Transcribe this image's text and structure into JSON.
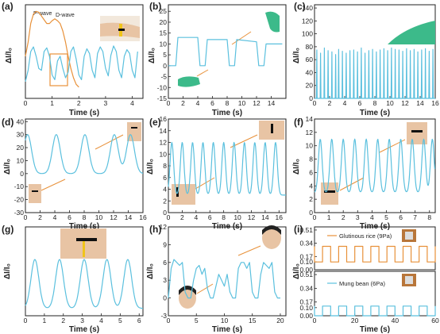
{
  "figure": {
    "panels": [
      {
        "letter": "(a)",
        "xlabel": "Time (s)",
        "ylabel": "ΔI/I₀",
        "xticks": [
          "0",
          "1",
          "2",
          "3",
          "4"
        ],
        "annotations": [
          "P-wave",
          "D-wave"
        ],
        "photo": "wrist-pulse-photo"
      },
      {
        "letter": "(b)",
        "xlabel": "Time (s)",
        "ylabel": "ΔI/I₀",
        "yticks": [
          "-15",
          "-10",
          "-5",
          "0",
          "5",
          "10",
          "15",
          "20",
          "25"
        ],
        "xticks": [
          "0",
          "2",
          "4",
          "6",
          "8",
          "10",
          "12",
          "14"
        ],
        "photo": "finger-bend-photo"
      },
      {
        "letter": "(c)",
        "xlabel": "Time (s)",
        "ylabel": "ΔI/I₀",
        "yticks": [
          "0",
          "20",
          "40",
          "60",
          "80",
          "100",
          "120",
          "140"
        ],
        "xticks": [
          "0",
          "2",
          "4",
          "6",
          "8",
          "10",
          "12",
          "14",
          "16"
        ],
        "photo": "finger-tap-photo"
      },
      {
        "letter": "(d)",
        "xlabel": "Time (s)",
        "ylabel": "ΔI/I₀",
        "yticks": [
          "-30",
          "-20",
          "-10",
          "0",
          "10",
          "20",
          "30",
          "40"
        ],
        "xticks": [
          "0",
          "2",
          "4",
          "6",
          "8",
          "10",
          "12",
          "14",
          "16"
        ],
        "photo": "wrist-bend-photo"
      },
      {
        "letter": "(e)",
        "xlabel": "Time (s)",
        "ylabel": "ΔI/I₀",
        "yticks": [
          "0",
          "2",
          "4",
          "6",
          "8",
          "10",
          "12",
          "14",
          "16"
        ],
        "xticks": [
          "0",
          "2",
          "4",
          "6",
          "8",
          "10",
          "12",
          "14",
          "16"
        ],
        "photo": "elbow-bend-photo"
      },
      {
        "letter": "(f)",
        "xlabel": "Time (s)",
        "ylabel": "ΔI/I₀",
        "yticks": [
          "0",
          "2",
          "4",
          "6",
          "8",
          "10",
          "12",
          "14"
        ],
        "xticks": [
          "0",
          "1",
          "2",
          "3",
          "4",
          "5",
          "6",
          "7",
          "8"
        ],
        "photo": "knee-bend-photo"
      },
      {
        "letter": "(g)",
        "xlabel": "Time (s)",
        "ylabel": "ΔI/I₀",
        "xticks": [
          "0",
          "1",
          "2",
          "3",
          "4",
          "5",
          "6"
        ],
        "photo": "throat-photo"
      },
      {
        "letter": "(h)",
        "xlabel": "Time (s)",
        "ylabel": "ΔI/I₀",
        "yticks": [
          "-3",
          "0",
          "3",
          "6",
          "9",
          "12"
        ],
        "xticks": [
          "0",
          "5",
          "10",
          "15",
          "20"
        ],
        "photo": "face-photo"
      },
      {
        "letter": "(i)",
        "xlabel": "Time (s)",
        "ylabel": "ΔI/I₀",
        "yticks_top": [
          "0.00",
          "0.10",
          "0.17",
          "0.34",
          "0.51"
        ],
        "yticks_bottom": [
          "0.00",
          "0.10",
          "0.17",
          "0.34",
          "0.51"
        ],
        "xticks": [
          "0",
          "20",
          "40",
          "60"
        ],
        "legend_top": "Glutinous rice (9Pa)",
        "legend_bottom": "Mung bean (6Pa)",
        "photo": "grain-photo"
      }
    ],
    "colors": {
      "signal": "#5bc0de",
      "highlight": "#e8913a",
      "axis": "#222222",
      "skin": "#e8c4a4",
      "glove": "#3cba8a",
      "sensor": "#f0c419"
    }
  },
  "chart_data": [
    {
      "panel": "(a)",
      "type": "line",
      "xlim": [
        0,
        4.4
      ],
      "series": [
        {
          "color": "#e8913a",
          "x": [
            0.0,
            0.1,
            0.2,
            0.3,
            0.4,
            0.5,
            0.6,
            0.7,
            0.8,
            0.9,
            1.0,
            1.1,
            1.2,
            1.3,
            1.4,
            1.5,
            1.6,
            1.7,
            1.8,
            1.9,
            2.0
          ],
          "y": [
            0.45,
            0.6,
            0.8,
            0.9,
            0.93,
            0.92,
            0.88,
            0.84,
            0.8,
            0.8,
            0.83,
            0.85,
            0.83,
            0.8,
            0.72,
            0.6,
            0.45,
            0.32,
            0.22,
            0.15,
            0.12
          ]
        },
        {
          "color": "#5bc0de",
          "x": [
            0.0,
            0.1,
            0.2,
            0.3,
            0.4,
            0.5,
            0.6,
            0.7,
            0.8,
            0.9,
            1.0,
            1.1,
            1.2,
            1.3,
            1.4,
            1.5,
            1.6,
            1.7,
            1.8,
            1.9,
            2.0,
            2.1,
            2.2,
            2.3,
            2.4,
            2.5,
            2.6,
            2.7,
            2.8,
            2.9,
            3.0,
            3.1,
            3.2,
            3.3,
            3.4,
            3.5,
            3.6,
            3.7,
            3.8,
            3.9,
            4.0,
            4.1,
            4.2
          ],
          "y": [
            0.18,
            0.3,
            0.5,
            0.55,
            0.45,
            0.32,
            0.3,
            0.5,
            0.54,
            0.45,
            0.25,
            0.2,
            0.4,
            0.45,
            0.32,
            0.22,
            0.28,
            0.5,
            0.55,
            0.42,
            0.25,
            0.2,
            0.45,
            0.53,
            0.48,
            0.3,
            0.22,
            0.48,
            0.55,
            0.5,
            0.32,
            0.24,
            0.46,
            0.56,
            0.5,
            0.3,
            0.22,
            0.45,
            0.52,
            0.48,
            0.3,
            0.22,
            0.5
          ]
        }
      ]
    },
    {
      "panel": "(b)",
      "type": "line",
      "xlim": [
        0,
        16
      ],
      "ylim": [
        -15,
        28
      ],
      "series": [
        {
          "color": "#5bc0de",
          "x": [
            0,
            0.5,
            1,
            1.3,
            4,
            4.3,
            5,
            5.3,
            8,
            8.3,
            9,
            9.3,
            12,
            12.3,
            13,
            13.3,
            15.5
          ],
          "y": [
            0,
            0,
            0,
            13,
            13,
            0,
            0,
            12,
            12,
            0,
            0,
            12,
            11,
            0,
            0,
            10,
            10
          ]
        }
      ]
    },
    {
      "panel": "(c)",
      "type": "line",
      "xlim": [
        0,
        16
      ],
      "ylim": [
        0,
        145
      ],
      "series": [
        {
          "color": "#5bc0de",
          "x": [
            0.3,
            0.8,
            1.3,
            1.8,
            2.3,
            2.8,
            3.2,
            3.7,
            4.2,
            4.7,
            5.2,
            5.7,
            6.2,
            6.7,
            7.2,
            7.7,
            8.2,
            8.7,
            9.2,
            9.7,
            10.2,
            10.7,
            11.2,
            11.7,
            12.2,
            12.7,
            13.2,
            13.7,
            14.2,
            14.7,
            15.2,
            15.7
          ],
          "y": [
            75,
            70,
            78,
            74,
            72,
            68,
            76,
            73,
            70,
            74,
            75,
            72,
            78,
            70,
            74,
            76,
            72,
            75,
            77,
            74,
            78,
            76,
            75,
            73,
            77,
            74,
            76,
            72,
            75,
            77,
            73,
            76
          ]
        }
      ]
    },
    {
      "panel": "(d)",
      "type": "line",
      "xlim": [
        0,
        16
      ],
      "ylim": [
        -30,
        42
      ],
      "series": [
        {
          "color": "#5bc0de",
          "peaks_x": [
            0.3,
            4.2,
            8.1,
            12.1,
            14.3
          ],
          "peak_y": 30,
          "baseline_y": 0
        }
      ]
    },
    {
      "panel": "(e)",
      "type": "line",
      "xlim": [
        0,
        17
      ],
      "ylim": [
        0,
        16
      ],
      "series": [
        {
          "color": "#5bc0de",
          "peaks_x": [
            0.5,
            2,
            3.5,
            5,
            6.5,
            8,
            9.5,
            11,
            12.5,
            14,
            15.5
          ],
          "peak_y": 12,
          "baseline_y": 3
        }
      ]
    },
    {
      "panel": "(f)",
      "type": "line",
      "xlim": [
        0,
        8.4
      ],
      "ylim": [
        0,
        14
      ],
      "series": [
        {
          "color": "#5bc0de",
          "peaks_x": [
            0.4,
            1.2,
            2,
            2.8,
            3.6,
            4.4,
            5.2,
            6,
            6.8,
            7.6,
            8.2
          ],
          "peak_y": 11,
          "baseline_y": 3
        }
      ]
    },
    {
      "panel": "(g)",
      "type": "line",
      "xlim": [
        0,
        6.2
      ],
      "series": [
        {
          "color": "#5bc0de",
          "peaks_x": [
            0.5,
            1.8,
            3.1,
            4.3,
            5.4
          ],
          "peak_y": 0.38,
          "baseline_y": 0.05
        }
      ]
    },
    {
      "panel": "(h)",
      "type": "line",
      "xlim": [
        0,
        21
      ],
      "ylim": [
        -3,
        12
      ],
      "series": [
        {
          "color": "#5bc0de",
          "x": [
            0,
            0.5,
            1,
            1.5,
            2,
            2.5,
            3,
            3.5,
            4,
            4.5,
            5,
            5.5,
            6,
            6.5,
            7,
            7.5,
            8,
            8.5,
            9,
            9.5,
            10,
            10.5,
            11,
            11.5,
            12,
            12.5,
            13,
            13.5,
            14,
            14.5,
            15,
            15.5,
            16,
            16.5,
            17,
            17.5,
            18,
            18.5,
            19,
            19.5,
            20
          ],
          "y": [
            0,
            5,
            6.5,
            6,
            5.5,
            6,
            1,
            0,
            0,
            3,
            5,
            5.5,
            4,
            5,
            1.5,
            0,
            0,
            2,
            4,
            3,
            2,
            4,
            1,
            0,
            0,
            5,
            6,
            6,
            5,
            6,
            1,
            0,
            0,
            4,
            6,
            5.5,
            5,
            6,
            1,
            0,
            0
          ]
        }
      ]
    },
    {
      "panel": "(i)",
      "type": "line",
      "xlim": [
        0,
        60
      ],
      "series": [
        {
          "name": "Glutinous rice (9Pa)",
          "color": "#e8913a",
          "square_wave": true,
          "low": 0.1,
          "high": 0.3
        },
        {
          "name": "Mung bean (6Pa)",
          "color": "#5bc0de",
          "square_wave": true,
          "low": 0.0,
          "high": 0.12
        }
      ]
    }
  ]
}
